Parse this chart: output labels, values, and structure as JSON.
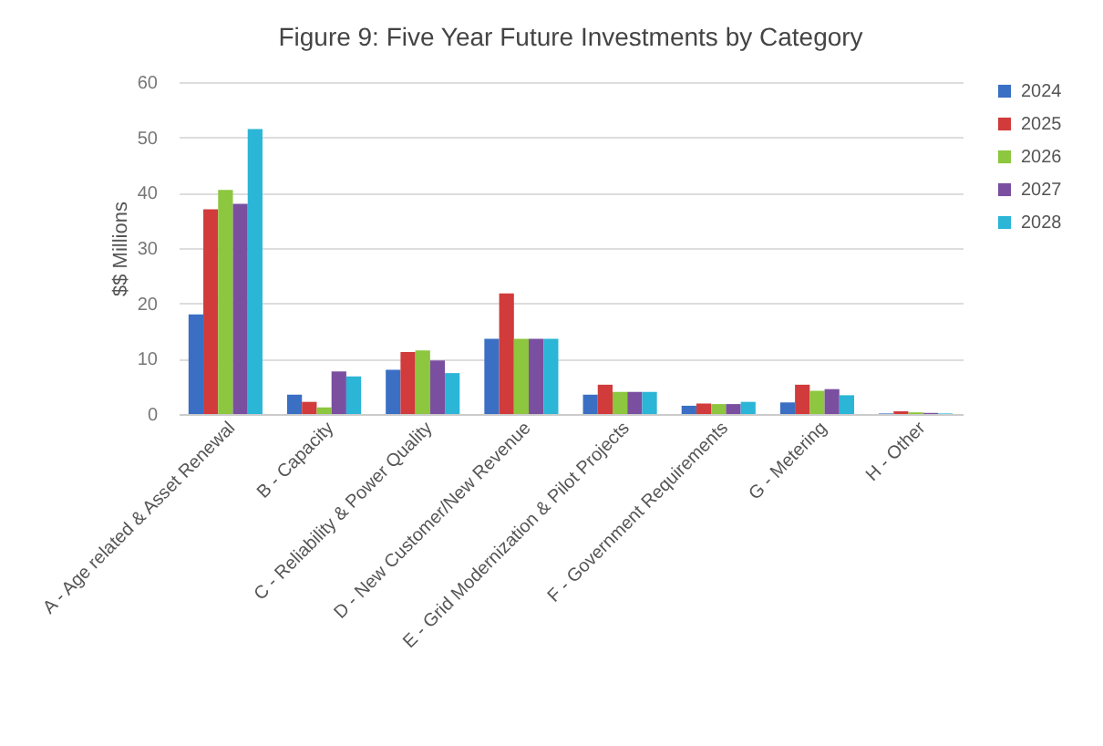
{
  "chart_data": {
    "type": "bar",
    "title": "Figure 9: Five Year Future Investments by Category",
    "ylabel": "$$ Millions",
    "categories": [
      "A - Age related & Asset Renewal",
      "B - Capacity",
      "C - Reliability & Power Quality",
      "D - New Customer/New Revenue",
      "E - Grid Modernization & Pilot Projects",
      "F - Government Requirements",
      "G - Metering",
      "H - Other"
    ],
    "series": [
      {
        "name": "2024",
        "color": "#3a6fc4",
        "values": [
          18,
          3.5,
          8,
          13.6,
          3.5,
          1.5,
          2.1,
          0.1
        ]
      },
      {
        "name": "2025",
        "color": "#d13b3b",
        "values": [
          37,
          2.2,
          11.2,
          21.8,
          5.3,
          1.9,
          5.3,
          0.5
        ]
      },
      {
        "name": "2026",
        "color": "#8dc63f",
        "values": [
          40.5,
          1.2,
          11.5,
          13.6,
          4,
          1.8,
          4.2,
          0.3
        ]
      },
      {
        "name": "2027",
        "color": "#7b4fa0",
        "values": [
          38,
          7.7,
          9.7,
          13.6,
          4,
          1.8,
          4.5,
          0.2
        ]
      },
      {
        "name": "2028",
        "color": "#2bb5d6",
        "values": [
          51.5,
          6.8,
          7.4,
          13.6,
          4,
          2.2,
          3.4,
          0.1
        ]
      }
    ],
    "ylim": [
      0,
      60
    ],
    "yticks": [
      0,
      10,
      20,
      30,
      40,
      50,
      60
    ],
    "grid": "y",
    "legend": "right"
  }
}
